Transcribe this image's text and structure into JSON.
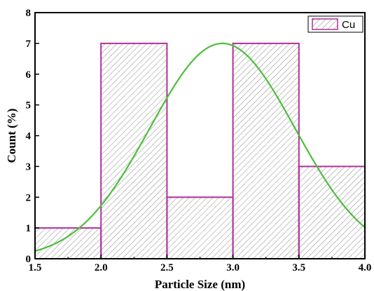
{
  "chart_data": {
    "type": "bar",
    "title": "",
    "xlabel": "Particle Size (nm)",
    "ylabel": "Count (%)",
    "xlim": [
      1.5,
      4.0
    ],
    "ylim": [
      0,
      8
    ],
    "xticks": [
      1.5,
      2.0,
      2.5,
      3.0,
      3.5,
      4.0
    ],
    "xtick_labels": [
      "1.5",
      "2.0",
      "2.5",
      "3.0",
      "3.5",
      "4.0"
    ],
    "yticks": [
      0,
      1,
      2,
      3,
      4,
      5,
      6,
      7,
      8
    ],
    "ytick_labels": [
      "0",
      "1",
      "2",
      "3",
      "4",
      "5",
      "6",
      "7",
      "8"
    ],
    "bins": [
      {
        "x0": 1.5,
        "x1": 2.0,
        "value": 1
      },
      {
        "x0": 2.0,
        "x1": 2.5,
        "value": 7
      },
      {
        "x0": 2.5,
        "x1": 3.0,
        "value": 2
      },
      {
        "x0": 3.0,
        "x1": 3.5,
        "value": 7
      },
      {
        "x0": 3.5,
        "x1": 4.0,
        "value": 3
      }
    ],
    "series": [
      {
        "name": "Cu",
        "style": "hatched histogram",
        "edge_color": "#b0309c"
      }
    ],
    "fit_curve": {
      "type": "gaussian",
      "peak_x": 2.92,
      "peak_y": 7.0,
      "sigma": 0.55,
      "color": "#4cbf3a"
    },
    "legend": {
      "position": "top-right",
      "entries": [
        "Cu"
      ]
    },
    "grid": false
  }
}
